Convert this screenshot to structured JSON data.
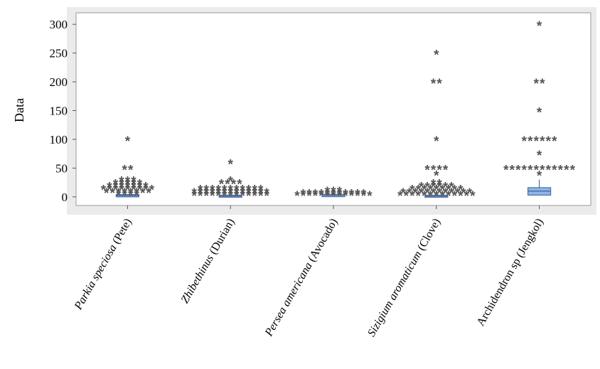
{
  "chart_data": {
    "type": "boxplot",
    "ylabel": "Data",
    "ylim": [
      -15,
      320
    ],
    "yticks": [
      0,
      50,
      100,
      150,
      200,
      250,
      300
    ],
    "outlier_marker": "*",
    "colors": {
      "frame_bg": "#ebebeb",
      "plot_bg": "#ffffff",
      "box_fill": "#8fb6e6",
      "box_edge": "#4a6fa5",
      "outlier": "#555555"
    },
    "categories": [
      {
        "label_parts": [
          {
            "text": "Parkia speciosa",
            "italic": true
          },
          {
            "text": " (Pete)",
            "italic": false
          }
        ],
        "box": {
          "q1": 0,
          "median": 2,
          "q3": 4
        },
        "outliers": [
          {
            "y": 100,
            "count": 1
          },
          {
            "y": 50,
            "count": 2
          },
          {
            "y": 30,
            "count": 3
          },
          {
            "y": 25,
            "count": 5
          },
          {
            "y": 20,
            "count": 7
          },
          {
            "y": 15,
            "count": 9
          },
          {
            "y": 10,
            "count": 8
          },
          {
            "y": 6,
            "count": 4
          }
        ]
      },
      {
        "label_parts": [
          {
            "text": "Zhibethinus",
            "italic": true
          },
          {
            "text": " (Durian)",
            "italic": false
          }
        ],
        "box": {
          "q1": 0,
          "median": 1,
          "q3": 3
        },
        "outliers": [
          {
            "y": 60,
            "count": 1
          },
          {
            "y": 30,
            "count": 1
          },
          {
            "y": 25,
            "count": 4
          },
          {
            "y": 15,
            "count": 11
          },
          {
            "y": 10,
            "count": 13
          },
          {
            "y": 5,
            "count": 13
          }
        ]
      },
      {
        "label_parts": [
          {
            "text": "Persea americana",
            "italic": true
          },
          {
            "text": " (Avocado)",
            "italic": false
          }
        ],
        "box": {
          "q1": 2,
          "median": 3,
          "q3": 4
        },
        "outliers": [
          {
            "y": 12,
            "count": 3
          },
          {
            "y": 8,
            "count": 11
          },
          {
            "y": 5,
            "count": 13
          }
        ]
      },
      {
        "label_parts": [
          {
            "text": "Sizigium aromaticum",
            "italic": true
          },
          {
            "text": " (Clove)",
            "italic": false
          }
        ],
        "box": {
          "q1": 0,
          "median": 1,
          "q3": 3
        },
        "outliers": [
          {
            "y": 250,
            "count": 1
          },
          {
            "y": 200,
            "count": 2
          },
          {
            "y": 100,
            "count": 1
          },
          {
            "y": 50,
            "count": 4
          },
          {
            "y": 40,
            "count": 1
          },
          {
            "y": 25,
            "count": 2
          },
          {
            "y": 20,
            "count": 6
          },
          {
            "y": 15,
            "count": 9
          },
          {
            "y": 10,
            "count": 12
          },
          {
            "y": 5,
            "count": 13
          }
        ]
      },
      {
        "label_parts": [
          {
            "text": "Archidendron sp (Jengkol)",
            "italic": false
          }
        ],
        "box": {
          "q1": 3,
          "median": 10,
          "q3": 16,
          "whisker_high": 30
        },
        "outliers": [
          {
            "y": 300,
            "count": 1
          },
          {
            "y": 200,
            "count": 2
          },
          {
            "y": 150,
            "count": 1
          },
          {
            "y": 100,
            "count": 6
          },
          {
            "y": 75,
            "count": 1
          },
          {
            "y": 50,
            "count": 12
          },
          {
            "y": 40,
            "count": 1
          }
        ]
      }
    ]
  }
}
